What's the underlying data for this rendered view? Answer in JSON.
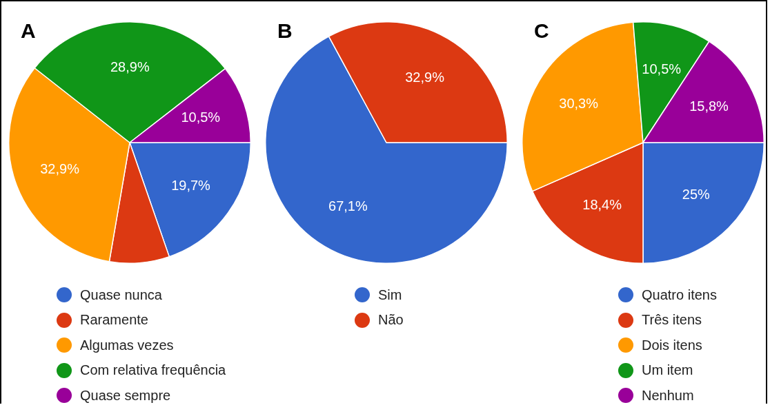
{
  "chart_data": [
    {
      "type": "pie",
      "title": "A",
      "categories": [
        "Quase nunca",
        "Raramente",
        "Algumas vezes",
        "Com relativa frequência",
        "Quase sempre"
      ],
      "values": [
        19.7,
        8.0,
        32.9,
        28.9,
        10.5
      ],
      "colors": [
        "#3366cc",
        "#dc3912",
        "#ff9900",
        "#109618",
        "#990099"
      ],
      "value_labels": [
        "19,7%",
        null,
        "32,9%",
        "28,9%",
        "10,5%"
      ],
      "legend": "bottom"
    },
    {
      "type": "pie",
      "title": "B",
      "categories": [
        "Sim",
        "Não"
      ],
      "values": [
        67.1,
        32.9
      ],
      "colors": [
        "#3366cc",
        "#dc3912"
      ],
      "value_labels": [
        "67,1%",
        "32,9%"
      ],
      "legend": "bottom"
    },
    {
      "type": "pie",
      "title": "C",
      "categories": [
        "Quatro itens",
        "Três itens",
        "Dois itens",
        "Um item",
        "Nenhum"
      ],
      "values": [
        25,
        18.4,
        30.3,
        10.5,
        15.8
      ],
      "colors": [
        "#3366cc",
        "#dc3912",
        "#ff9900",
        "#109618",
        "#990099"
      ],
      "value_labels": [
        "25%",
        "18,4%",
        "30,3%",
        "10,5%",
        "15,8%"
      ],
      "legend": "bottom"
    }
  ]
}
